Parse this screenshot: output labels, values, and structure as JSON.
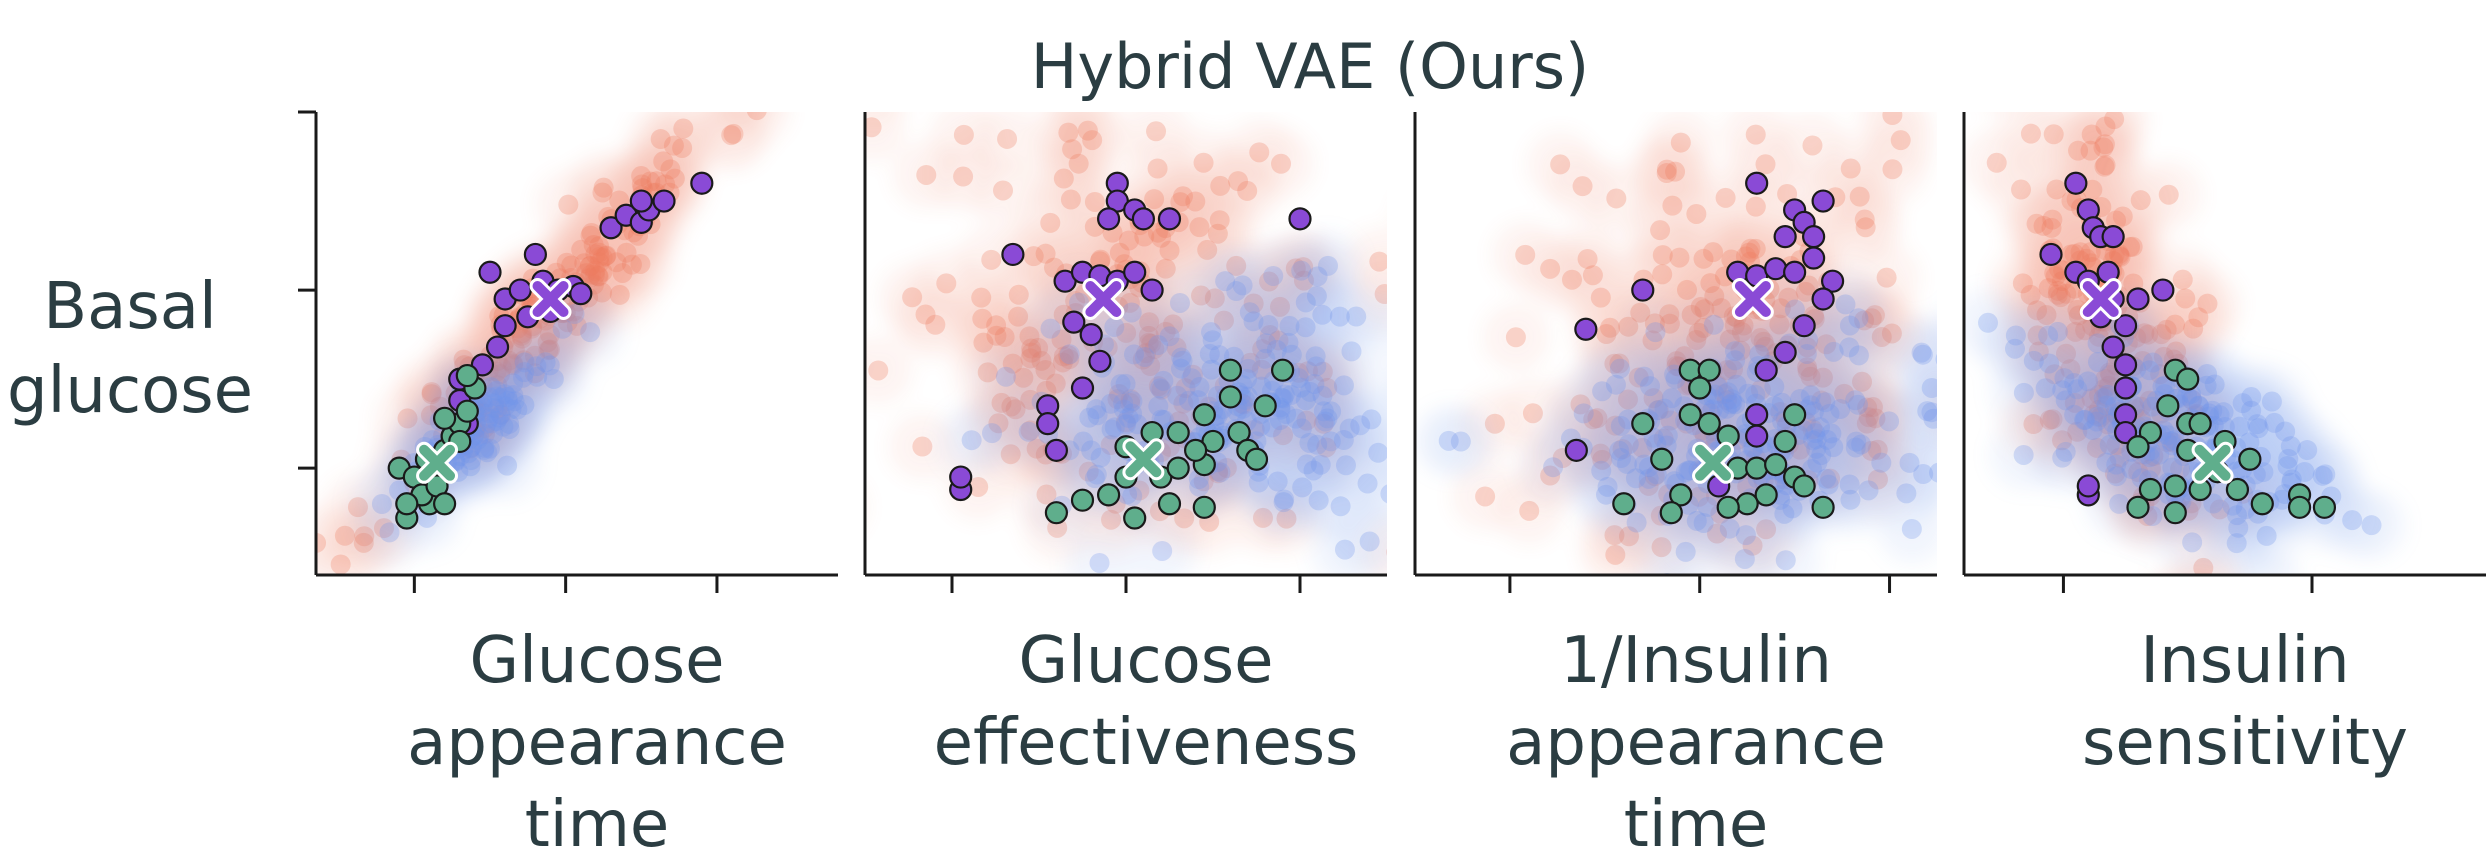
{
  "figure": {
    "title": "Hybrid VAE (Ours)",
    "ylabel_lines": [
      "Basal",
      "glucose"
    ]
  },
  "colors": {
    "reference": "#ee7b5c",
    "population": "#6f93ea",
    "group_high": "#8a4ad6",
    "group_low": "#5fae8c",
    "axis": "#1a1a1a",
    "text": "#2b3d42"
  },
  "chart_data": [
    {
      "type": "scatter",
      "xlabel_lines": [
        "Glucose",
        "appearance",
        "time"
      ],
      "ylabel_lines": [
        "Basal",
        "glucose"
      ],
      "xlim": [
        -0.65,
        2.8
      ],
      "ylim": [
        -0.6,
        2.0
      ],
      "grid": false,
      "legend": "none",
      "series": [
        {
          "id": "reference",
          "cloud": {
            "cx": 0.9,
            "cy": 0.9,
            "sx": 0.55,
            "sy": 0.55,
            "rho": 0.95,
            "n": 180,
            "seed": 11
          }
        },
        {
          "id": "population",
          "cloud": {
            "cx": 0.45,
            "cy": 0.25,
            "sx": 0.25,
            "sy": 0.22,
            "rho": 0.85,
            "n": 110,
            "seed": 12
          }
        },
        {
          "id": "group_high",
          "points": [
            [
              0.5,
              1.1
            ],
            [
              0.6,
              0.95
            ],
            [
              0.7,
              1.0
            ],
            [
              0.85,
              1.05
            ],
            [
              0.95,
              1.0
            ],
            [
              1.05,
              1.02
            ],
            [
              1.1,
              0.98
            ],
            [
              0.8,
              1.2
            ],
            [
              0.9,
              0.88
            ],
            [
              0.75,
              0.85
            ],
            [
              0.6,
              0.8
            ],
            [
              0.55,
              0.68
            ],
            [
              0.45,
              0.58
            ],
            [
              0.3,
              0.5
            ],
            [
              0.3,
              0.38
            ],
            [
              0.35,
              0.25
            ],
            [
              0.25,
              0.18
            ],
            [
              1.3,
              1.35
            ],
            [
              1.4,
              1.42
            ],
            [
              1.5,
              1.38
            ],
            [
              1.55,
              1.45
            ],
            [
              1.5,
              1.5
            ],
            [
              1.65,
              1.5
            ],
            [
              1.9,
              1.6
            ]
          ],
          "centroid": [
            0.9,
            0.95
          ]
        },
        {
          "id": "group_low",
          "points": [
            [
              -0.1,
              0.0
            ],
            [
              0.0,
              -0.05
            ],
            [
              0.08,
              0.05
            ],
            [
              0.15,
              0.0
            ],
            [
              0.2,
              0.1
            ],
            [
              0.25,
              0.18
            ],
            [
              0.3,
              0.25
            ],
            [
              0.35,
              0.32
            ],
            [
              0.4,
              0.45
            ],
            [
              0.1,
              -0.2
            ],
            [
              -0.05,
              -0.28
            ],
            [
              0.05,
              -0.15
            ],
            [
              0.15,
              -0.1
            ],
            [
              0.2,
              -0.2
            ],
            [
              -0.05,
              -0.2
            ],
            [
              0.3,
              0.15
            ],
            [
              0.35,
              0.52
            ],
            [
              0.2,
              0.28
            ]
          ],
          "centroid": [
            0.15,
            0.03
          ]
        }
      ]
    },
    {
      "type": "scatter",
      "xlabel_lines": [
        "Glucose",
        "effectiveness"
      ],
      "xlim": [
        -0.5,
        2.5
      ],
      "ylim": [
        -0.6,
        2.0
      ],
      "grid": false,
      "legend": "none",
      "series": [
        {
          "id": "reference",
          "cloud": {
            "cx": 1.0,
            "cy": 0.75,
            "sx": 0.7,
            "sy": 0.6,
            "rho": -0.1,
            "n": 200,
            "seed": 21
          }
        },
        {
          "id": "population",
          "cloud": {
            "cx": 1.6,
            "cy": 0.35,
            "sx": 0.5,
            "sy": 0.3,
            "rho": 0.1,
            "n": 200,
            "seed": 22
          }
        },
        {
          "id": "group_high",
          "points": [
            [
              0.95,
              1.6
            ],
            [
              0.95,
              1.5
            ],
            [
              1.05,
              1.45
            ],
            [
              0.9,
              1.4
            ],
            [
              1.1,
              1.4
            ],
            [
              0.35,
              1.2
            ],
            [
              0.65,
              1.05
            ],
            [
              0.75,
              1.1
            ],
            [
              0.85,
              1.08
            ],
            [
              0.95,
              1.05
            ],
            [
              1.05,
              1.1
            ],
            [
              1.15,
              1.0
            ],
            [
              0.7,
              0.82
            ],
            [
              0.8,
              0.75
            ],
            [
              0.85,
              0.6
            ],
            [
              0.75,
              0.45
            ],
            [
              0.55,
              0.35
            ],
            [
              0.55,
              0.25
            ],
            [
              0.6,
              0.1
            ],
            [
              0.05,
              -0.12
            ],
            [
              0.05,
              -0.05
            ],
            [
              2.0,
              1.4
            ],
            [
              1.25,
              1.4
            ]
          ],
          "centroid": [
            0.87,
            0.95
          ]
        },
        {
          "id": "group_low",
          "points": [
            [
              0.6,
              -0.25
            ],
            [
              0.75,
              -0.18
            ],
            [
              0.9,
              -0.15
            ],
            [
              1.0,
              -0.05
            ],
            [
              1.1,
              0.05
            ],
            [
              1.2,
              -0.05
            ],
            [
              1.3,
              0.0
            ],
            [
              1.45,
              0.02
            ],
            [
              1.5,
              0.15
            ],
            [
              1.45,
              0.3
            ],
            [
              1.4,
              0.1
            ],
            [
              1.3,
              0.2
            ],
            [
              1.6,
              0.4
            ],
            [
              1.65,
              0.2
            ],
            [
              1.7,
              0.1
            ],
            [
              1.75,
              0.05
            ],
            [
              1.8,
              0.35
            ],
            [
              1.9,
              0.55
            ],
            [
              1.6,
              0.55
            ],
            [
              1.15,
              0.2
            ],
            [
              1.25,
              -0.2
            ],
            [
              1.05,
              -0.28
            ],
            [
              1.45,
              -0.22
            ],
            [
              1.0,
              0.12
            ]
          ],
          "centroid": [
            1.1,
            0.05
          ]
        }
      ]
    },
    {
      "type": "scatter",
      "xlabel_lines": [
        "1/Insulin",
        "appearance",
        "time"
      ],
      "xlim": [
        -0.5,
        2.25
      ],
      "ylim": [
        -0.6,
        2.0
      ],
      "grid": false,
      "legend": "none",
      "series": [
        {
          "id": "reference",
          "cloud": {
            "cx": 1.1,
            "cy": 0.6,
            "sx": 0.55,
            "sy": 0.6,
            "rho": 0.2,
            "n": 200,
            "seed": 31
          }
        },
        {
          "id": "population",
          "cloud": {
            "cx": 1.2,
            "cy": 0.2,
            "sx": 0.55,
            "sy": 0.3,
            "rho": 0.05,
            "n": 200,
            "seed": 32
          }
        },
        {
          "id": "group_high",
          "points": [
            [
              1.3,
              1.6
            ],
            [
              1.5,
              1.45
            ],
            [
              1.65,
              1.5
            ],
            [
              1.55,
              1.38
            ],
            [
              1.45,
              1.3
            ],
            [
              1.6,
              1.3
            ],
            [
              1.2,
              1.1
            ],
            [
              1.3,
              1.08
            ],
            [
              1.4,
              1.12
            ],
            [
              1.5,
              1.1
            ],
            [
              1.6,
              1.18
            ],
            [
              1.7,
              1.05
            ],
            [
              1.65,
              0.95
            ],
            [
              1.55,
              0.8
            ],
            [
              1.45,
              0.65
            ],
            [
              1.35,
              0.55
            ],
            [
              1.3,
              0.3
            ],
            [
              1.3,
              0.18
            ],
            [
              0.7,
              1.0
            ],
            [
              0.4,
              0.78
            ],
            [
              0.35,
              0.1
            ],
            [
              1.1,
              -0.1
            ]
          ],
          "centroid": [
            1.28,
            0.95
          ]
        },
        {
          "id": "group_low",
          "points": [
            [
              0.95,
              0.55
            ],
            [
              1.05,
              0.55
            ],
            [
              1.0,
              0.45
            ],
            [
              0.95,
              0.3
            ],
            [
              1.05,
              0.25
            ],
            [
              1.15,
              0.18
            ],
            [
              1.2,
              0.0
            ],
            [
              1.3,
              0.0
            ],
            [
              1.4,
              0.02
            ],
            [
              1.5,
              -0.05
            ],
            [
              1.55,
              -0.1
            ],
            [
              1.35,
              -0.15
            ],
            [
              1.25,
              -0.2
            ],
            [
              1.15,
              -0.22
            ],
            [
              0.9,
              -0.15
            ],
            [
              0.85,
              -0.25
            ],
            [
              0.6,
              -0.2
            ],
            [
              0.8,
              0.05
            ],
            [
              1.45,
              0.15
            ],
            [
              1.5,
              0.3
            ],
            [
              0.7,
              0.25
            ],
            [
              1.65,
              -0.22
            ]
          ],
          "centroid": [
            1.07,
            0.03
          ]
        }
      ]
    },
    {
      "type": "scatter",
      "xlabel_lines": [
        "Insulin",
        "sensitivity"
      ],
      "xlim": [
        -0.4,
        1.7
      ],
      "ylim": [
        -0.6,
        2.0
      ],
      "grid": false,
      "legend": "none",
      "series": [
        {
          "id": "reference",
          "cloud": {
            "cx": 0.2,
            "cy": 0.75,
            "sx": 0.2,
            "sy": 0.6,
            "rho": -0.55,
            "n": 180,
            "seed": 41
          }
        },
        {
          "id": "population",
          "cloud": {
            "cx": 0.45,
            "cy": 0.2,
            "sx": 0.32,
            "sy": 0.3,
            "rho": -0.55,
            "n": 180,
            "seed": 42
          }
        },
        {
          "id": "group_high",
          "points": [
            [
              0.05,
              1.6
            ],
            [
              0.1,
              1.45
            ],
            [
              0.12,
              1.35
            ],
            [
              0.15,
              1.3
            ],
            [
              0.2,
              1.3
            ],
            [
              -0.05,
              1.2
            ],
            [
              0.05,
              1.1
            ],
            [
              0.1,
              1.05
            ],
            [
              0.18,
              1.1
            ],
            [
              0.2,
              0.95
            ],
            [
              0.3,
              0.95
            ],
            [
              0.4,
              1.0
            ],
            [
              0.15,
              0.85
            ],
            [
              0.25,
              0.8
            ],
            [
              0.2,
              0.68
            ],
            [
              0.25,
              0.58
            ],
            [
              0.25,
              0.45
            ],
            [
              0.25,
              0.3
            ],
            [
              0.25,
              0.2
            ],
            [
              0.1,
              -0.15
            ],
            [
              0.1,
              -0.1
            ]
          ],
          "centroid": [
            0.15,
            0.95
          ]
        },
        {
          "id": "group_low",
          "points": [
            [
              0.45,
              0.55
            ],
            [
              0.5,
              0.5
            ],
            [
              0.42,
              0.35
            ],
            [
              0.5,
              0.25
            ],
            [
              0.55,
              0.25
            ],
            [
              0.35,
              0.2
            ],
            [
              0.3,
              0.12
            ],
            [
              0.5,
              0.1
            ],
            [
              0.65,
              0.15
            ],
            [
              0.6,
              0.0
            ],
            [
              0.45,
              -0.1
            ],
            [
              0.35,
              -0.12
            ],
            [
              0.3,
              -0.22
            ],
            [
              0.45,
              -0.25
            ],
            [
              0.7,
              -0.12
            ],
            [
              0.75,
              0.05
            ],
            [
              0.8,
              -0.2
            ],
            [
              0.95,
              -0.15
            ],
            [
              0.95,
              -0.22
            ],
            [
              1.05,
              -0.22
            ],
            [
              0.62,
              -0.02
            ],
            [
              0.55,
              -0.12
            ]
          ],
          "centroid": [
            0.6,
            0.03
          ]
        }
      ]
    }
  ]
}
